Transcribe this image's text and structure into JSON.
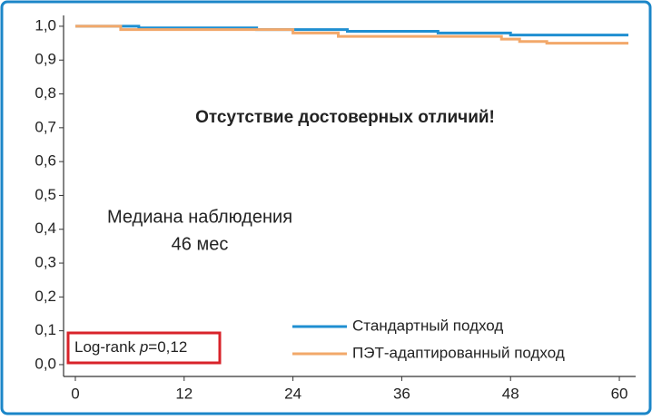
{
  "chart_data": {
    "type": "line",
    "title": "Отсутствие достоверных отличий!",
    "annotations": [
      "Медиана наблюдения",
      "46 мес"
    ],
    "pvalue": {
      "prefix": "Log-rank ",
      "symbol": "p",
      "suffix": "=0,12"
    },
    "xlim": [
      -1.3,
      61.8
    ],
    "ylim": [
      -0.035,
      1.032
    ],
    "xticks": [
      0,
      12,
      24,
      36,
      48,
      60
    ],
    "yticks": [
      {
        "value": 0,
        "label": "0,0"
      },
      {
        "value": 0.1,
        "label": "0,1"
      },
      {
        "value": 0.2,
        "label": "0,2"
      },
      {
        "value": 0.3,
        "label": "0,3"
      },
      {
        "value": 0.4,
        "label": "0,4"
      },
      {
        "value": 0.5,
        "label": "0,5"
      },
      {
        "value": 0.6,
        "label": "0,6"
      },
      {
        "value": 0.7,
        "label": "0,7"
      },
      {
        "value": 0.8,
        "label": "0,8"
      },
      {
        "value": 0.9,
        "label": "0,9"
      },
      {
        "value": 1,
        "label": "1,0"
      }
    ],
    "legend": "lower right",
    "series": [
      {
        "name": "Стандартный подход",
        "color": "#1f8fd1",
        "x": [
          0,
          7,
          7,
          20,
          20,
          30,
          30,
          40,
          40,
          48,
          48,
          61
        ],
        "values": [
          1,
          1,
          0.995,
          0.995,
          0.99,
          0.99,
          0.985,
          0.985,
          0.98,
          0.98,
          0.974,
          0.974
        ]
      },
      {
        "name": "ПЭТ-адаптированный подход",
        "color": "#f2a86a",
        "x": [
          0,
          5,
          5,
          24,
          24,
          29,
          29,
          47,
          47,
          49,
          49,
          52,
          52,
          61
        ],
        "values": [
          1,
          1,
          0.99,
          0.99,
          0.98,
          0.98,
          0.97,
          0.97,
          0.962,
          0.962,
          0.955,
          0.955,
          0.95,
          0.95
        ]
      }
    ]
  }
}
